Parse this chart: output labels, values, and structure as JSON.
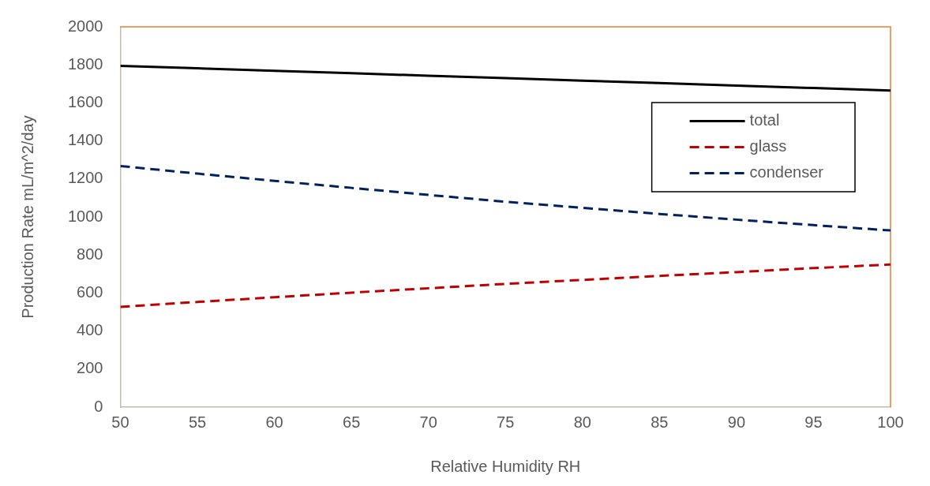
{
  "chart_data": {
    "type": "line",
    "xlabel": "Relative Humidity RH",
    "ylabel": "Production Rate mL/m^2/day",
    "x": [
      50,
      55,
      60,
      65,
      70,
      75,
      80,
      85,
      90,
      95,
      100
    ],
    "series": [
      {
        "name": "total",
        "color": "#000000",
        "line_style": "solid",
        "values": [
          1795,
          1782,
          1769,
          1756,
          1743,
          1730,
          1717,
          1704,
          1691,
          1678,
          1665
        ]
      },
      {
        "name": "glass",
        "color": "#c00000",
        "line_style": "dashed",
        "values": [
          527,
          553,
          578,
          602,
          625,
          648,
          669,
          690,
          710,
          731,
          750
        ]
      },
      {
        "name": "condenser",
        "color": "#002060",
        "line_style": "dashed",
        "values": [
          1268,
          1228,
          1190,
          1153,
          1116,
          1080,
          1048,
          1016,
          986,
          957,
          929
        ]
      }
    ],
    "xlim": [
      50,
      100
    ],
    "xticks": [
      50,
      55,
      60,
      65,
      70,
      75,
      80,
      85,
      90,
      95,
      100
    ],
    "ylim": [
      0,
      2000
    ],
    "yticks": [
      0,
      200,
      400,
      600,
      800,
      1000,
      1200,
      1400,
      1600,
      1800,
      2000
    ],
    "grid": false,
    "legend": "top right",
    "marker": "none"
  }
}
